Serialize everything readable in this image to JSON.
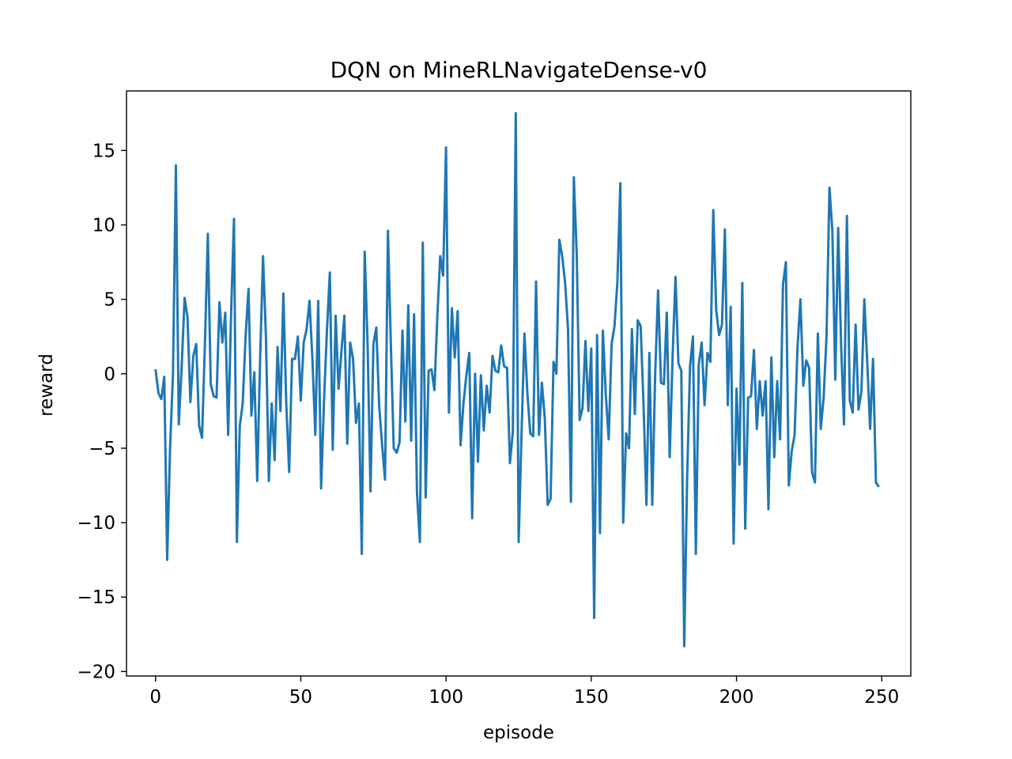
{
  "chart_data": {
    "type": "line",
    "title": "DQN on MineRLNavigateDense-v0",
    "xlabel": "episode",
    "ylabel": "reward",
    "xlim": [
      -10,
      260
    ],
    "ylim": [
      -20.3,
      19
    ],
    "xticks": [
      0,
      50,
      100,
      150,
      200,
      250
    ],
    "yticks": [
      -20,
      -15,
      -10,
      -5,
      0,
      5,
      10,
      15
    ],
    "xtick_labels": [
      "0",
      "50",
      "100",
      "150",
      "200",
      "250"
    ],
    "ytick_labels": [
      "−20",
      "−15",
      "−10",
      "−5",
      "0",
      "5",
      "10",
      "15"
    ],
    "grid": false,
    "legend": "none",
    "series": [
      {
        "color": "#1f77b4",
        "values": [
          0.3,
          -1.3,
          -1.7,
          -0.2,
          -12.5,
          -5.0,
          0.0,
          14.0,
          -3.4,
          0.5,
          5.1,
          3.8,
          -1.9,
          1.2,
          2.0,
          -3.5,
          -4.3,
          2.0,
          9.4,
          -0.7,
          -1.5,
          -1.6,
          4.8,
          2.1,
          4.1,
          -4.1,
          4.0,
          10.4,
          -11.3,
          -3.5,
          -2.0,
          2.5,
          5.7,
          -2.8,
          0.1,
          -7.2,
          1.0,
          7.9,
          2.5,
          -7.2,
          -2.0,
          -5.8,
          1.8,
          -2.5,
          5.4,
          -2.0,
          -6.6,
          1.0,
          1.0,
          2.5,
          -1.8,
          2.1,
          3.0,
          4.9,
          1.0,
          -4.1,
          4.9,
          -7.7,
          -1.8,
          2.9,
          6.8,
          -5.1,
          3.9,
          -1.0,
          1.5,
          3.9,
          -4.7,
          2.1,
          1.0,
          -3.3,
          -2.0,
          -12.1,
          8.2,
          2.0,
          -7.9,
          2.0,
          3.1,
          -2.2,
          -4.8,
          -7.1,
          9.6,
          2.0,
          -5.0,
          -5.3,
          -4.6,
          2.9,
          -3.2,
          4.6,
          -4.5,
          4.0,
          -8.0,
          -11.3,
          8.8,
          -8.3,
          0.2,
          0.3,
          -1.1,
          3.8,
          7.9,
          6.6,
          15.2,
          -2.6,
          4.4,
          1.1,
          4.2,
          -4.8,
          -2.0,
          -0.1,
          1.4,
          -9.7,
          0.0,
          -5.9,
          -0.1,
          -3.8,
          -0.8,
          -2.6,
          1.2,
          0.2,
          0.1,
          1.9,
          0.5,
          0.4,
          -6.0,
          -3.9,
          17.5,
          -11.3,
          -4.0,
          2.7,
          -1.3,
          -4.0,
          -4.2,
          6.2,
          -4.1,
          -0.6,
          -3.0,
          -8.8,
          -8.4,
          0.8,
          0.0,
          9.0,
          7.9,
          6.1,
          3.0,
          -8.6,
          13.2,
          8.0,
          -3.1,
          -2.3,
          2.2,
          -2.5,
          1.7,
          -16.4,
          2.6,
          -10.7,
          2.9,
          -1.4,
          -4.4,
          2.0,
          3.2,
          6.2,
          12.8,
          -10.0,
          -4.0,
          -5.0,
          3.0,
          -2.7,
          3.6,
          3.2,
          -2.1,
          -8.8,
          1.4,
          -8.8,
          0.0,
          5.6,
          -0.6,
          -0.7,
          4.1,
          -5.6,
          1.2,
          6.5,
          0.7,
          0.2,
          -18.3,
          -7.0,
          0.5,
          2.5,
          -12.1,
          0.6,
          2.1,
          -2.1,
          1.4,
          0.8,
          11.0,
          4.3,
          2.6,
          3.3,
          9.7,
          -2.1,
          4.5,
          -11.4,
          -1.0,
          -6.1,
          6.1,
          -10.4,
          -1.6,
          -1.5,
          1.6,
          -3.7,
          -0.5,
          -2.8,
          -0.5,
          -9.1,
          1.1,
          -5.6,
          -0.5,
          -4.4,
          6.0,
          7.5,
          -7.5,
          -5.2,
          -4.1,
          1.8,
          5.0,
          -0.8,
          0.9,
          0.4,
          -6.6,
          -7.3,
          2.7,
          -3.7,
          -1.6,
          2.6,
          12.5,
          9.6,
          -0.4,
          9.8,
          2.0,
          -3.4,
          10.6,
          -1.8,
          -2.6,
          3.3,
          -2.4,
          -1.2,
          5.0,
          0.8,
          -3.7,
          1.0,
          -7.3,
          -7.6
        ]
      }
    ]
  }
}
